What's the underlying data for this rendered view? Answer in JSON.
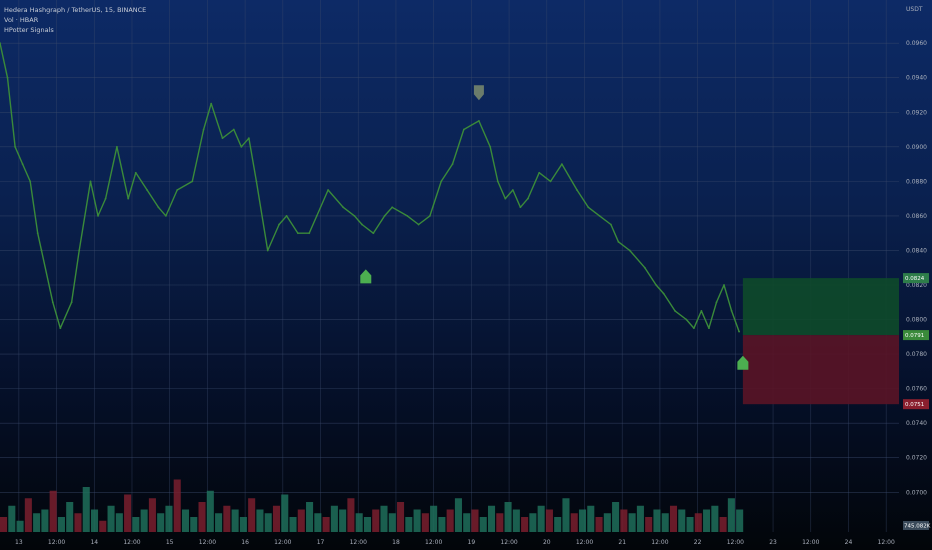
{
  "legend": {
    "symbol_line": "Hedera Hashgraph / TetherUS, 15, BINANCE",
    "volume_line": "Vol · HBAR",
    "indicator_line": "HPotter Signals"
  },
  "y_axis_unit": "USDT",
  "colors": {
    "price_line": "#3a8a3a",
    "grid": "#3b4a6b",
    "profit_zone": "#0e4a2a",
    "loss_zone": "#5a1426",
    "signal_up": "#4caf50",
    "signal_down": "#6b7c6b",
    "vol_up": "#1f6e5a",
    "vol_down": "#7a1f2e"
  },
  "position": {
    "target_label": "0.0824",
    "entry_label": "0.0791",
    "stop_label": "0.0751",
    "volume_label": "745.082K"
  },
  "chart_data": {
    "type": "line",
    "title": "Hedera Hashgraph / TetherUS, 15, BINANCE",
    "ylabel": "USDT",
    "ylim": [
      0.0677,
      0.0985
    ],
    "y_ticks": [
      0.096,
      0.094,
      0.092,
      0.09,
      0.088,
      0.086,
      0.084,
      0.082,
      0.08,
      0.078,
      0.076,
      0.074,
      0.072,
      0.07
    ],
    "x_ticks": [
      "13",
      "12:00",
      "14",
      "12:00",
      "15",
      "12:00",
      "16",
      "12:00",
      "17",
      "12:00",
      "18",
      "12:00",
      "19",
      "12:00",
      "20",
      "12:00",
      "21",
      "12:00",
      "22",
      "12:00",
      "23",
      "12:00",
      "24",
      "12:00"
    ],
    "xlim_days": [
      12.75,
      24.67
    ],
    "series": [
      {
        "x_days": [
          12.75,
          12.85,
          12.95,
          13.05,
          13.15,
          13.25,
          13.3,
          13.45,
          13.55,
          13.7,
          13.8,
          13.95,
          14.05,
          14.15,
          14.3,
          14.45,
          14.55,
          14.7,
          14.85,
          14.95,
          15.1,
          15.3,
          15.45,
          15.55,
          15.7,
          15.85,
          15.95,
          16.05,
          16.15,
          16.3,
          16.45,
          16.55,
          16.7,
          16.85,
          16.95,
          17.1,
          17.3,
          17.45,
          17.55,
          17.7,
          17.85,
          17.95,
          18.15,
          18.3,
          18.45,
          18.6,
          18.75,
          18.9,
          19.1,
          19.25,
          19.35,
          19.45,
          19.55,
          19.65,
          19.75,
          19.9,
          20.05,
          20.2,
          20.4,
          20.55,
          20.7,
          20.85,
          20.95,
          21.1,
          21.3,
          21.45,
          21.55,
          21.7,
          21.85,
          21.95,
          22.05,
          22.15,
          22.25,
          22.35,
          22.45,
          22.55
        ],
        "y": [
          0.096,
          0.094,
          0.09,
          0.089,
          0.088,
          0.085,
          0.084,
          0.081,
          0.0795,
          0.081,
          0.084,
          0.088,
          0.086,
          0.087,
          0.09,
          0.087,
          0.0885,
          0.0875,
          0.0865,
          0.086,
          0.0875,
          0.088,
          0.091,
          0.0925,
          0.0905,
          0.091,
          0.09,
          0.0905,
          0.088,
          0.084,
          0.0855,
          0.086,
          0.085,
          0.085,
          0.086,
          0.0875,
          0.0865,
          0.086,
          0.0855,
          0.085,
          0.086,
          0.0865,
          0.086,
          0.0855,
          0.086,
          0.088,
          0.089,
          0.091,
          0.0915,
          0.09,
          0.088,
          0.087,
          0.0875,
          0.0865,
          0.087,
          0.0885,
          0.088,
          0.089,
          0.0875,
          0.0865,
          0.086,
          0.0855,
          0.0845,
          0.084,
          0.083,
          0.082,
          0.0815,
          0.0805,
          0.08,
          0.0795,
          0.0805,
          0.0795,
          0.081,
          0.082,
          0.0805,
          0.0793
        ]
      }
    ],
    "signals": [
      {
        "type": "buy",
        "x_days": 17.6,
        "y": 0.0825
      },
      {
        "type": "sell",
        "x_days": 19.1,
        "y": 0.0931
      },
      {
        "type": "buy",
        "x_days": 22.6,
        "y": 0.0775
      }
    ],
    "position_zone": {
      "x_start_days": 22.6,
      "x_end_days": 24.67,
      "target": 0.0824,
      "entry": 0.0791,
      "stop": 0.0751
    },
    "volume": {
      "label": "745.082K",
      "bars_relative": [
        0.2,
        0.35,
        0.15,
        0.45,
        0.25,
        0.3,
        0.55,
        0.2,
        0.4,
        0.25,
        0.6,
        0.3,
        0.15,
        0.35,
        0.25,
        0.5,
        0.2,
        0.3,
        0.45,
        0.25,
        0.35,
        0.7,
        0.3,
        0.2,
        0.4,
        0.55,
        0.25,
        0.35,
        0.3,
        0.2,
        0.45,
        0.3,
        0.25,
        0.35,
        0.5,
        0.2,
        0.3,
        0.4,
        0.25,
        0.2,
        0.35,
        0.3,
        0.45,
        0.25,
        0.2,
        0.3,
        0.35,
        0.25,
        0.4,
        0.2,
        0.3,
        0.25,
        0.35,
        0.2,
        0.3,
        0.45,
        0.25,
        0.3,
        0.2,
        0.35,
        0.25,
        0.4,
        0.3,
        0.2,
        0.25,
        0.35,
        0.3,
        0.2,
        0.45,
        0.25,
        0.3,
        0.35,
        0.2,
        0.25,
        0.4,
        0.3,
        0.25,
        0.35,
        0.2,
        0.3,
        0.25,
        0.35,
        0.3,
        0.2,
        0.25,
        0.3,
        0.35,
        0.2,
        0.45,
        0.3
      ]
    }
  }
}
